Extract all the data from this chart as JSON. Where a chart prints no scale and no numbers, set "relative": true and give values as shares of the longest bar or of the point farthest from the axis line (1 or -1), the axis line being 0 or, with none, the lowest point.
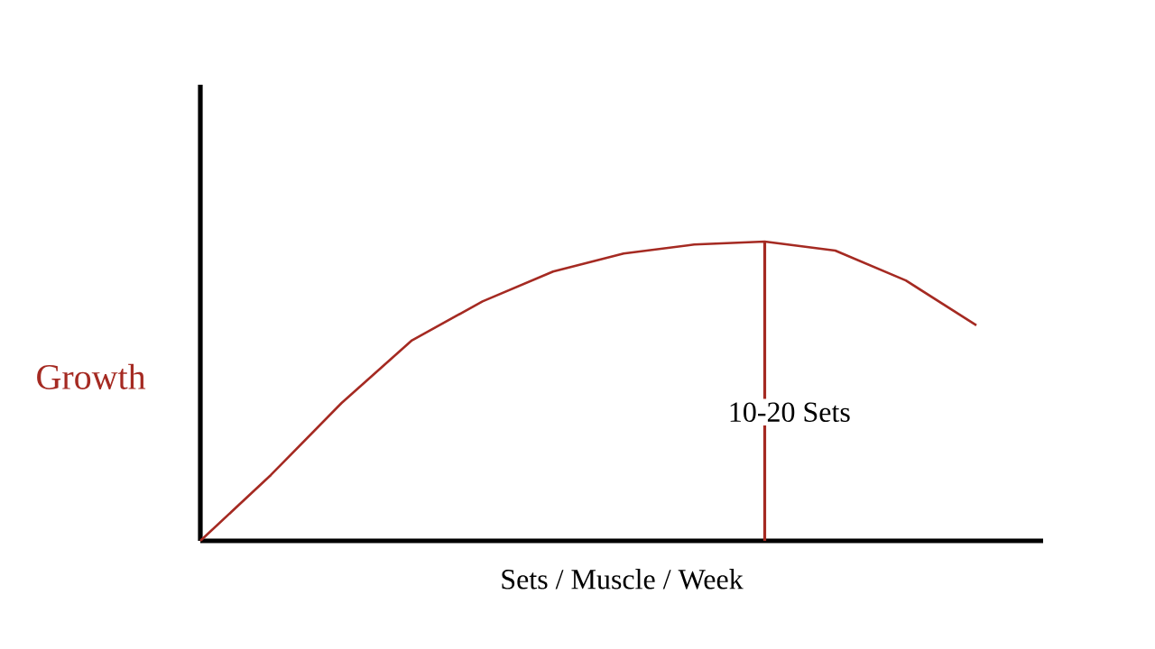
{
  "chart_data": {
    "type": "line",
    "relative": true,
    "xlabel": "Sets / Muscle / Week",
    "ylabel": "Growth",
    "categories": [
      null,
      null,
      null,
      null,
      null,
      null,
      null,
      null,
      null,
      null,
      null,
      null
    ],
    "series": [
      {
        "color": "#a52a22",
        "values": [
          0,
          0.22,
          0.46,
          0.67,
          0.8,
          0.9,
          0.96,
          0.99,
          1,
          0.97,
          0.87,
          0.72
        ]
      }
    ],
    "annotations": [
      "10-20 Sets"
    ],
    "marker": "none",
    "line_style": "solid"
  }
}
